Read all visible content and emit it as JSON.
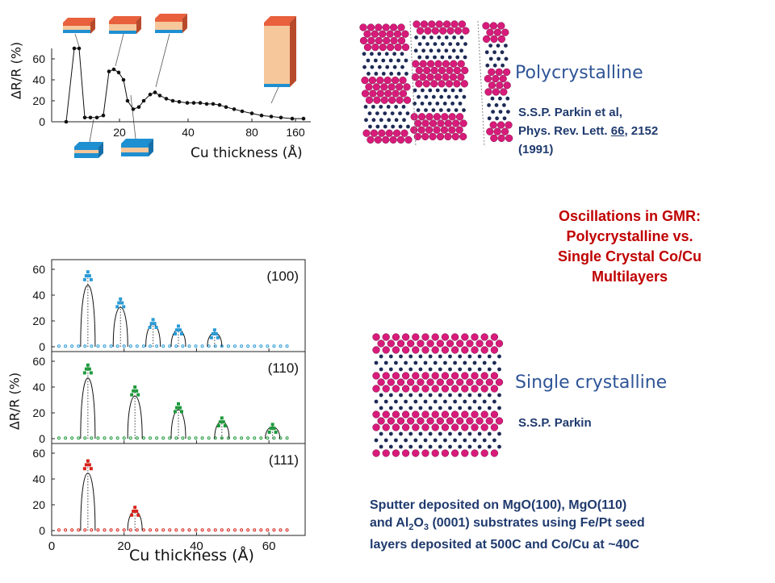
{
  "top_chart": {
    "ylabel": "ΔR/R (%)",
    "xlabel": "Cu thickness (Å)",
    "yticks": [
      "0",
      "20",
      "40",
      "60"
    ],
    "xticks": [
      "20",
      "40",
      "80",
      "160"
    ]
  },
  "poly": {
    "label": "Polycrystalline",
    "cite_line1": "S.S.P. Parkin et al,",
    "cite_line2_pre": "Phys. Rev. Lett. ",
    "cite_vol": "66",
    "cite_line2_post": ", 2152",
    "cite_line3": "(1991)"
  },
  "title": {
    "line1": "Oscillations in GMR:",
    "line2": "Polycrystalline vs.",
    "line3": "Single Crystal Co/Cu",
    "line4": "Multilayers"
  },
  "single": {
    "label": "Single crystalline",
    "cite": "S.S.P. Parkin"
  },
  "bottom_note": {
    "line1": "Sputter deposited on MgO(100), MgO(110)",
    "line2_a": "and Al",
    "line2_sub1": "2",
    "line2_b": "O",
    "line2_sub2": "3",
    "line2_c": " (0001) substrates using Fe/Pt seed",
    "line3": "layers deposited at 500C and Co/Cu at ~40C"
  },
  "panel_chart": {
    "ylabel": "ΔR/R (%)",
    "xlabel": "Cu thickness (Å)",
    "xticks": [
      "0",
      "20",
      "40",
      "60"
    ],
    "panels": [
      {
        "name": "(100)",
        "color": "#2a9bd6",
        "yticks": [
          "0",
          "20",
          "40",
          "60"
        ],
        "peaks": [
          [
            10,
            58
          ],
          [
            19,
            37
          ],
          [
            28,
            21
          ],
          [
            35,
            16
          ],
          [
            45,
            13
          ]
        ]
      },
      {
        "name": "(110)",
        "color": "#1e9a3c",
        "yticks": [
          "0",
          "20",
          "40",
          "60"
        ],
        "peaks": [
          [
            10,
            57
          ],
          [
            23,
            40
          ],
          [
            35,
            27
          ],
          [
            47,
            16
          ],
          [
            61,
            11
          ]
        ]
      },
      {
        "name": "(111)",
        "color": "#d6241c",
        "yticks": [
          "0",
          "20",
          "40",
          "60"
        ],
        "peaks": [
          [
            10,
            54
          ],
          [
            23,
            18
          ]
        ]
      }
    ]
  },
  "colors": {
    "cobalt_layer": "#1e8fd0",
    "copper_layer": "#f6c79a",
    "lattice_magenta": "#d81b7a",
    "lattice_navy": "#1e2a55"
  }
}
